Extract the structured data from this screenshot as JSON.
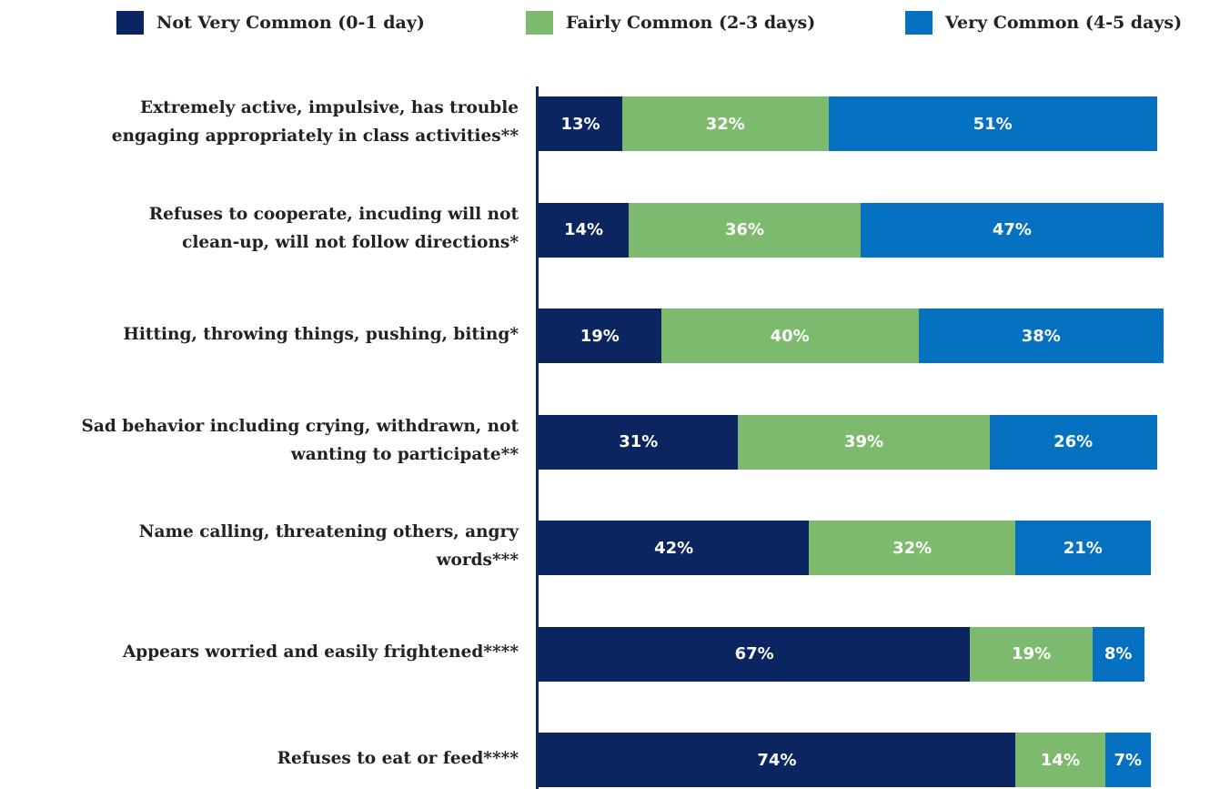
{
  "chart_data": {
    "type": "stacked-bar-horizontal",
    "categories": [
      [
        "Extremely active, impulsive, has trouble",
        "engaging appropriately in class activities**"
      ],
      [
        "Refuses to cooperate, incuding will not",
        "clean-up, will not follow directions*"
      ],
      [
        "Hitting, throwing things, pushing, biting*"
      ],
      [
        "Sad behavior including crying, withdrawn, not",
        "wanting to participate**"
      ],
      [
        "Name calling, threatening others, angry",
        "words***"
      ],
      [
        "Appears worried and easily frightened****"
      ],
      [
        "Refuses to eat or feed****"
      ]
    ],
    "series": [
      {
        "name": "Not Very Common (0-1 day)",
        "color": "#0b2560",
        "values": [
          13,
          14,
          19,
          31,
          42,
          67,
          74
        ],
        "value_labels": [
          "13%",
          "14%",
          "19%",
          "31%",
          "42%",
          "67%",
          "74%"
        ]
      },
      {
        "name": "Fairly Common (2-3 days)",
        "color": "#7dba6d",
        "values": [
          32,
          36,
          40,
          39,
          32,
          19,
          14
        ],
        "value_labels": [
          "32%",
          "36%",
          "40%",
          "39%",
          "32%",
          "19%",
          "14%"
        ]
      },
      {
        "name": "Very Common (4-5 days)",
        "color": "#0571c0",
        "values": [
          51,
          47,
          38,
          26,
          21,
          8,
          7
        ],
        "value_labels": [
          "51%",
          "47%",
          "38%",
          "26%",
          "21%",
          "8%",
          "7%"
        ]
      }
    ],
    "xlim": [
      0,
      100
    ]
  }
}
